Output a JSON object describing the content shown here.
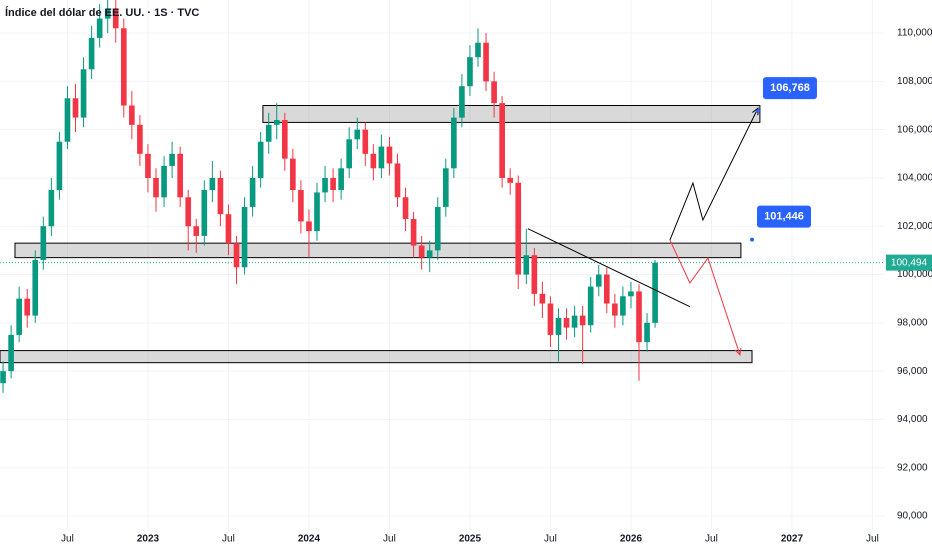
{
  "chart_data": {
    "type": "candlestick",
    "title": "Índice del dólar de EE. UU. · 1S · TVC",
    "up_color": "#089981",
    "down_color": "#f23645",
    "grid": true,
    "xlim": [
      2022.081,
      2027.578
    ],
    "ylim": [
      89.42,
      111.37
    ],
    "xticks": [
      {
        "value": 2022.5,
        "label": "Jul"
      },
      2023,
      {
        "value": 2023.5,
        "label": "Jul"
      },
      2024,
      {
        "value": 2024.5,
        "label": "Jul"
      },
      2025,
      {
        "value": 2025.5,
        "label": "Jul"
      },
      2026,
      {
        "value": 2026.5,
        "label": "Jul"
      },
      2027,
      {
        "value": 2027.5,
        "label": "Jul"
      }
    ],
    "yticks": [
      {
        "value": 90,
        "label": "90,000"
      },
      {
        "value": 92,
        "label": "92,000"
      },
      {
        "value": 94,
        "label": "94,000"
      },
      {
        "value": 96,
        "label": "96,000"
      },
      {
        "value": 98,
        "label": "98,000"
      },
      {
        "value": 100,
        "label": "100,000"
      },
      {
        "value": 102,
        "label": "102,000"
      },
      {
        "value": 104,
        "label": "104,000"
      },
      {
        "value": 106,
        "label": "106,000"
      },
      {
        "value": 108,
        "label": "108,000"
      },
      {
        "value": 110,
        "label": "110,000"
      }
    ],
    "x": [
      2022.1,
      2022.15,
      2022.2,
      2022.25,
      2022.3,
      2022.35,
      2022.4,
      2022.45,
      2022.5,
      2022.55,
      2022.6,
      2022.65,
      2022.7,
      2022.75,
      2022.8,
      2022.85,
      2022.9,
      2022.95,
      2023.0,
      2023.05,
      2023.1,
      2023.15,
      2023.2,
      2023.25,
      2023.3,
      2023.35,
      2023.4,
      2023.45,
      2023.5,
      2023.55,
      2023.6,
      2023.65,
      2023.7,
      2023.75,
      2023.8,
      2023.85,
      2023.9,
      2023.95,
      2024.0,
      2024.05,
      2024.1,
      2024.15,
      2024.2,
      2024.25,
      2024.3,
      2024.35,
      2024.4,
      2024.45,
      2024.5,
      2024.55,
      2024.6,
      2024.65,
      2024.7,
      2024.75,
      2024.8,
      2024.85,
      2024.9,
      2024.95,
      2025.0,
      2025.05,
      2025.1,
      2025.15,
      2025.2,
      2025.25,
      2025.3,
      2025.35,
      2025.4,
      2025.45,
      2025.5,
      2025.55,
      2025.6,
      2025.65,
      2025.7,
      2025.75,
      2025.8,
      2025.85,
      2025.9,
      2025.95,
      2026.0,
      2026.05,
      2026.1,
      2026.15
    ],
    "open": [
      95.5,
      96.0,
      97.5,
      99.0,
      98.3,
      100.6,
      102.0,
      103.5,
      105.5,
      107.3,
      106.5,
      108.5,
      109.8,
      110.6,
      111.0,
      110.2,
      107.0,
      106.2,
      105.0,
      104.0,
      103.2,
      104.5,
      105.0,
      103.2,
      102.0,
      101.6,
      103.5,
      104.0,
      102.5,
      101.3,
      100.3,
      102.8,
      104.0,
      105.5,
      106.2,
      106.4,
      104.8,
      103.5,
      102.2,
      101.8,
      103.4,
      104.0,
      103.5,
      104.4,
      105.6,
      106.0,
      105.0,
      104.4,
      105.3,
      104.6,
      103.2,
      102.3,
      101.2,
      100.7,
      101.0,
      102.8,
      104.4,
      106.5,
      107.8,
      109.0,
      109.6,
      108.0,
      107.1,
      104.0,
      103.8,
      100.0,
      100.8,
      99.2,
      98.8,
      97.5,
      98.2,
      97.8,
      98.3,
      97.9,
      99.5,
      100.0,
      98.8,
      98.3,
      99.1,
      99.3,
      97.2,
      98.0
    ],
    "high": [
      96.4,
      97.9,
      99.5,
      99.4,
      101.0,
      102.4,
      104.0,
      105.9,
      107.8,
      107.9,
      109.0,
      110.3,
      111.2,
      112.0,
      111.6,
      110.6,
      107.6,
      106.6,
      105.4,
      104.4,
      104.9,
      105.5,
      105.3,
      103.5,
      102.3,
      103.9,
      104.7,
      104.3,
      102.9,
      101.6,
      103.2,
      104.5,
      105.9,
      106.7,
      107.1,
      106.7,
      105.2,
      103.9,
      102.7,
      103.8,
      104.5,
      104.4,
      104.8,
      106.1,
      106.5,
      106.3,
      105.4,
      105.8,
      105.7,
      105.0,
      103.6,
      102.6,
      101.6,
      101.4,
      103.2,
      104.8,
      106.9,
      108.3,
      109.5,
      110.2,
      110.0,
      108.4,
      107.4,
      104.4,
      104.1,
      101.9,
      101.1,
      99.7,
      99.1,
      98.6,
      98.6,
      98.7,
      98.7,
      99.9,
      100.4,
      100.3,
      99.2,
      99.5,
      99.7,
      99.6,
      98.4,
      100.6
    ],
    "low": [
      95.1,
      95.7,
      97.2,
      97.8,
      98.0,
      100.2,
      101.6,
      103.1,
      105.2,
      105.9,
      106.1,
      108.1,
      109.4,
      110.0,
      109.6,
      106.5,
      105.6,
      104.5,
      103.4,
      102.6,
      102.8,
      104.0,
      102.8,
      101.0,
      100.9,
      101.2,
      103.0,
      102.0,
      100.8,
      99.6,
      100.0,
      102.4,
      103.6,
      105.0,
      105.6,
      104.3,
      103.0,
      101.7,
      100.7,
      101.4,
      103.0,
      103.0,
      103.1,
      104.0,
      105.2,
      104.5,
      103.9,
      104.0,
      104.1,
      102.8,
      101.8,
      100.7,
      100.2,
      100.1,
      100.6,
      102.4,
      104.0,
      106.1,
      107.4,
      108.6,
      107.6,
      106.5,
      103.6,
      103.3,
      99.4,
      99.6,
      98.7,
      98.2,
      97.0,
      96.4,
      97.3,
      97.4,
      96.3,
      97.6,
      99.1,
      98.4,
      97.8,
      97.9,
      98.6,
      95.6,
      96.8,
      97.8
    ],
    "close": [
      96.0,
      97.5,
      99.0,
      98.3,
      100.6,
      102.0,
      103.5,
      105.5,
      107.3,
      106.5,
      108.5,
      109.8,
      110.6,
      111.0,
      110.2,
      107.0,
      106.2,
      105.0,
      104.0,
      103.2,
      104.5,
      105.0,
      103.2,
      102.0,
      101.6,
      103.5,
      104.0,
      102.5,
      101.3,
      100.3,
      102.8,
      104.0,
      105.5,
      106.2,
      106.4,
      104.8,
      103.5,
      102.2,
      101.8,
      103.4,
      104.0,
      103.5,
      104.4,
      105.6,
      106.0,
      105.0,
      104.4,
      105.3,
      104.6,
      103.2,
      102.3,
      101.2,
      100.7,
      101.0,
      102.8,
      104.4,
      106.5,
      107.8,
      109.0,
      109.6,
      108.0,
      107.1,
      104.0,
      103.8,
      100.0,
      100.8,
      99.2,
      98.8,
      97.5,
      98.2,
      97.8,
      98.3,
      97.9,
      99.5,
      100.0,
      98.8,
      98.3,
      99.1,
      99.3,
      97.2,
      98.0,
      100.49
    ],
    "zones": [
      {
        "x": [
          2023.714,
          2026.801
        ],
        "low": 106.3,
        "high": 107.0
      },
      {
        "x": [
          2022.174,
          2026.683
        ],
        "low": 100.7,
        "high": 101.3
      },
      {
        "x": [
          2022.081,
          2026.752
        ],
        "low": 96.35,
        "high": 96.85
      }
    ],
    "drawings": [
      {
        "color": "#000000",
        "arrow": false,
        "x": [
          2025.36,
          2026.366
        ],
        "y": [
          101.9,
          98.67
        ]
      },
      {
        "color": "#000000",
        "arrow": true,
        "x": [
          2026.242,
          2026.385,
          2026.447,
          2026.789
        ],
        "y": [
          101.43,
          103.79,
          102.26,
          106.89
        ]
      },
      {
        "color": "#f23645",
        "arrow": true,
        "x": [
          2026.242,
          2026.366,
          2026.478,
          2026.677
        ],
        "y": [
          101.43,
          99.65,
          100.68,
          96.67
        ]
      }
    ],
    "callouts": [
      {
        "x": 2026.789,
        "value": 106.768,
        "label": "106,768",
        "color": "#2962ff"
      },
      {
        "x": 2026.752,
        "value": 101.446,
        "label": "101,446",
        "color": "#2962ff"
      }
    ],
    "last_price": {
      "value": 100.494,
      "label": "100,494",
      "color": "#22ab94"
    }
  }
}
